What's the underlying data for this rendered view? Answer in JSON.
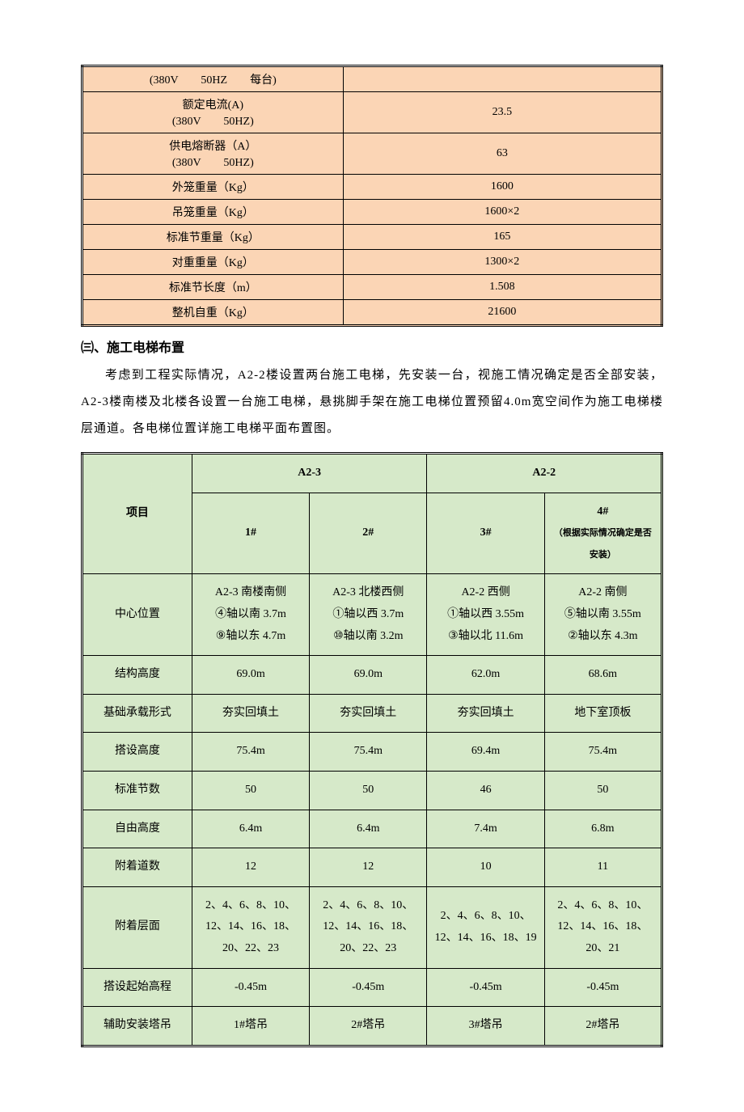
{
  "table1": {
    "background_color": "#fbd5b5",
    "border_color": "#000000",
    "rows": [
      {
        "label": "(380V　　50HZ　　每台)",
        "value": ""
      },
      {
        "label_line1": "额定电流(A)",
        "label_line2": "(380V　　50HZ)",
        "value": "23.5"
      },
      {
        "label_line1": "供电熔断器（A）",
        "label_line2": "(380V　　50HZ)",
        "value": "63"
      },
      {
        "label": "外笼重量（Kg）",
        "value": "1600"
      },
      {
        "label": "吊笼重量（Kg）",
        "value": "1600×2"
      },
      {
        "label": "标准节重量（Kg）",
        "value": "165"
      },
      {
        "label": "对重重量（Kg）",
        "value": "1300×2"
      },
      {
        "label": "标准节长度（m）",
        "value": "1.508"
      },
      {
        "label": "整机自重（Kg）",
        "value": "21600"
      }
    ]
  },
  "section_heading": "㈢、施工电梯布置",
  "paragraph": "考虑到工程实际情况，A2-2楼设置两台施工电梯，先安装一台，视施工情况确定是否全部安装，A2-3楼南楼及北楼各设置一台施工电梯，悬挑脚手架在施工电梯位置预留4.0m宽空间作为施工电梯楼层通道。各电梯位置详施工电梯平面布置图。",
  "table2": {
    "background_color": "#d6e9c9",
    "border_color": "#000000",
    "header": {
      "col0": "项目",
      "group1": "A2-3",
      "group2": "A2-2",
      "c1": "1#",
      "c2": "2#",
      "c3": "3#",
      "c4_main": "4#",
      "c4_note": "（根据实际情况确定是否安装）"
    },
    "rows": [
      {
        "label": "中心位置",
        "c1_l1": "A2-3 南楼南侧",
        "c1_l2": "④轴以南 3.7m",
        "c1_l3": "⑨轴以东 4.7m",
        "c2_l1": "A2-3 北楼西侧",
        "c2_l2": "①轴以西 3.7m",
        "c2_l3": "⑩轴以南 3.2m",
        "c3_l1": "A2-2 西侧",
        "c3_l2": "①轴以西 3.55m",
        "c3_l3": "③轴以北 11.6m",
        "c4_l1": "A2-2 南侧",
        "c4_l2": "⑤轴以南 3.55m",
        "c4_l3": "②轴以东 4.3m"
      },
      {
        "label": "结构高度",
        "c1": "69.0m",
        "c2": "69.0m",
        "c3": "62.0m",
        "c4": "68.6m"
      },
      {
        "label": "基础承载形式",
        "c1": "夯实回填土",
        "c2": "夯实回填土",
        "c3": "夯实回填土",
        "c4": "地下室顶板"
      },
      {
        "label": "搭设高度",
        "c1": "75.4m",
        "c2": "75.4m",
        "c3": "69.4m",
        "c4": "75.4m"
      },
      {
        "label": "标准节数",
        "c1": "50",
        "c2": "50",
        "c3": "46",
        "c4": "50"
      },
      {
        "label": "自由高度",
        "c1": "6.4m",
        "c2": "6.4m",
        "c3": "7.4m",
        "c4": "6.8m"
      },
      {
        "label": "附着道数",
        "c1": "12",
        "c2": "12",
        "c3": "10",
        "c4": "11"
      },
      {
        "label": "附着层面",
        "c1": "2、4、6、8、10、12、14、16、18、20、22、23",
        "c2": "2、4、6、8、10、12、14、16、18、20、22、23",
        "c3": "2、4、6、8、10、12、14、16、18、19",
        "c4": "2、4、6、8、10、12、14、16、18、20、21"
      },
      {
        "label": "搭设起始高程",
        "c1": "-0.45m",
        "c2": "-0.45m",
        "c3": "-0.45m",
        "c4": "-0.45m"
      },
      {
        "label": "辅助安装塔吊",
        "c1": "1#塔吊",
        "c2": "2#塔吊",
        "c3": "3#塔吊",
        "c4": "2#塔吊"
      }
    ]
  }
}
